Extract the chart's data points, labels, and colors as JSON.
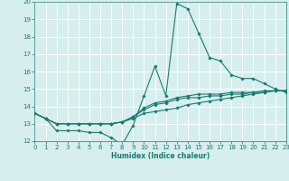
{
  "xlabel": "Humidex (Indice chaleur)",
  "ylabel": "",
  "bg_color": "#d6eeee",
  "line_color": "#1a7a6e",
  "grid_color": "#ffffff",
  "x": [
    0,
    1,
    2,
    3,
    4,
    5,
    6,
    7,
    8,
    9,
    10,
    11,
    12,
    13,
    14,
    15,
    16,
    17,
    18,
    19,
    20,
    21,
    22,
    23
  ],
  "series1": [
    13.6,
    13.3,
    12.6,
    12.6,
    12.6,
    12.5,
    12.5,
    12.2,
    11.8,
    12.9,
    14.6,
    16.3,
    14.6,
    19.9,
    19.6,
    18.2,
    16.8,
    16.6,
    15.8,
    15.6,
    15.6,
    15.3,
    15.0,
    14.8
  ],
  "series2": [
    13.6,
    13.3,
    13.0,
    13.0,
    13.0,
    13.0,
    13.0,
    13.0,
    13.1,
    13.3,
    13.6,
    13.7,
    13.8,
    13.9,
    14.1,
    14.2,
    14.3,
    14.4,
    14.5,
    14.6,
    14.7,
    14.8,
    14.9,
    14.9
  ],
  "series3": [
    13.6,
    13.3,
    13.0,
    13.0,
    13.0,
    13.0,
    13.0,
    13.0,
    13.1,
    13.4,
    13.8,
    14.1,
    14.2,
    14.4,
    14.5,
    14.5,
    14.6,
    14.6,
    14.7,
    14.7,
    14.8,
    14.8,
    14.9,
    14.9
  ],
  "series4": [
    13.6,
    13.3,
    13.0,
    13.0,
    13.0,
    13.0,
    13.0,
    13.0,
    13.1,
    13.4,
    13.9,
    14.2,
    14.3,
    14.5,
    14.6,
    14.7,
    14.7,
    14.7,
    14.8,
    14.8,
    14.8,
    14.9,
    14.9,
    14.9
  ],
  "ylim": [
    12,
    20
  ],
  "xlim": [
    0,
    23
  ],
  "yticks": [
    12,
    13,
    14,
    15,
    16,
    17,
    18,
    19,
    20
  ],
  "xticks": [
    0,
    1,
    2,
    3,
    4,
    5,
    6,
    7,
    8,
    9,
    10,
    11,
    12,
    13,
    14,
    15,
    16,
    17,
    18,
    19,
    20,
    21,
    22,
    23
  ],
  "tick_fontsize": 5.0,
  "xlabel_fontsize": 5.5
}
